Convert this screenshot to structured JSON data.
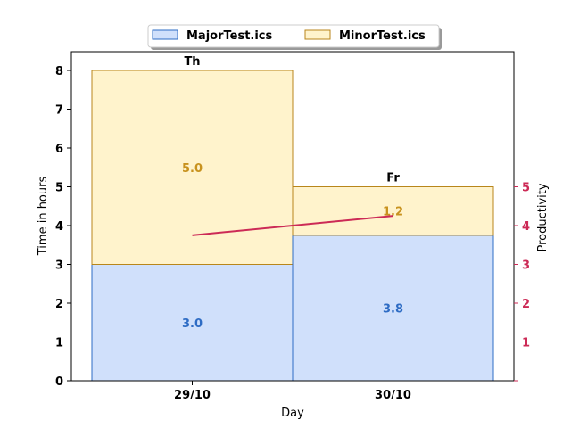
{
  "colors": {
    "major_fill": "#d0e0fb",
    "major_edge": "#2e6cc4",
    "minor_fill": "#fff3cc",
    "minor_edge": "#b8861b",
    "minor_text": "#c8921e",
    "productivity": "#cc2a56"
  },
  "chart_data": {
    "type": "bar",
    "stacked": true,
    "categories": [
      "29/10",
      "30/10"
    ],
    "day_labels": [
      "Th",
      "Fr"
    ],
    "xlabel": "Day",
    "ylabel": "Time in hours",
    "ylabel_right": "Productivity",
    "ylim": [
      0,
      8.5
    ],
    "yticks": [
      0,
      1,
      2,
      3,
      4,
      5,
      6,
      7,
      8
    ],
    "yticks_right": [
      1,
      2,
      3,
      4,
      5
    ],
    "series": [
      {
        "name": "MajorTest.ics",
        "values": [
          3.0,
          3.75
        ],
        "labels": [
          "3.0",
          "3.8"
        ]
      },
      {
        "name": "MinorTest.ics",
        "values": [
          5.0,
          1.25
        ],
        "labels": [
          "5.0",
          "1.2"
        ]
      }
    ],
    "productivity": {
      "values": [
        3.75,
        4.25
      ]
    },
    "legend_position": "top-center",
    "grid": false
  }
}
